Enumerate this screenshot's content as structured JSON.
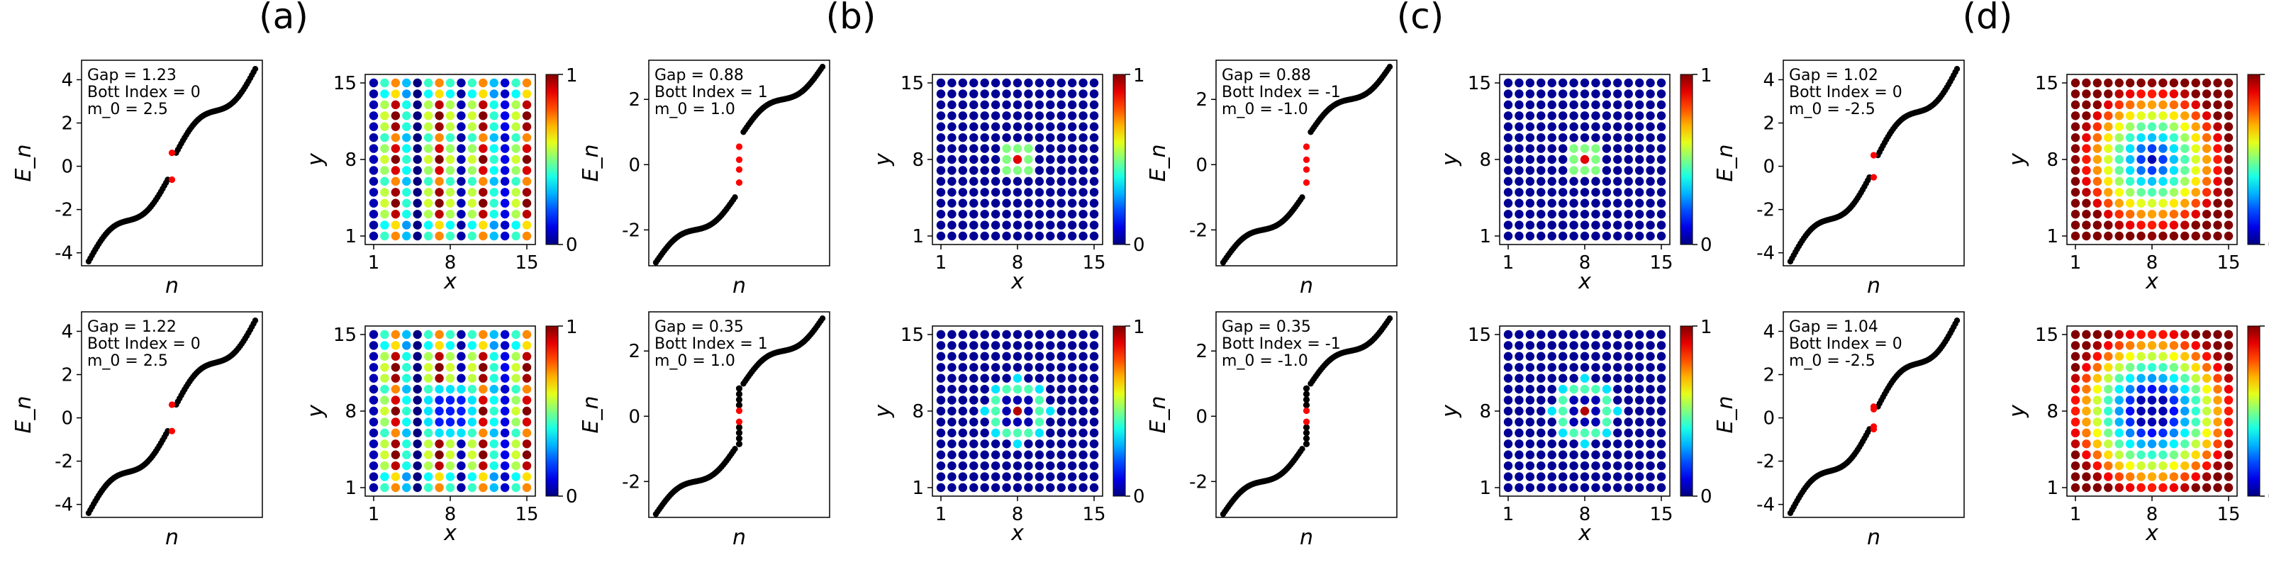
{
  "figure": {
    "panel_labels": [
      "(a)",
      "(b)",
      "(c)",
      "(d)"
    ],
    "colorbar_ticks": [
      "0",
      "1"
    ]
  },
  "chart_data": [
    {
      "type": "scatter",
      "kind": "spectrum",
      "panel": "(a)",
      "row": 1,
      "title": "",
      "xlabel": "n",
      "ylabel": "E_n",
      "ylim": [
        -4.6,
        4.9
      ],
      "yticks": [
        -4,
        -2,
        0,
        2,
        4
      ],
      "annotations": [
        "Gap = 1.23",
        "Bott Index = 0",
        "m_0 = 2.5"
      ],
      "series": [
        {
          "name": "bulk states",
          "color": "#000000",
          "E_min": -4.4,
          "E_max": 4.5,
          "gap_low": -0.62,
          "gap_high": 0.62,
          "points_per_branch": 48
        },
        {
          "name": "in-gap states",
          "color": "#ff0000",
          "values": [
            -0.62,
            0.62
          ]
        }
      ]
    },
    {
      "type": "heatmap",
      "kind": "density",
      "panel": "(a)",
      "row": 1,
      "xlabel": "x",
      "ylabel": "y",
      "xticks": [
        1,
        8,
        15
      ],
      "yticks": [
        1,
        8,
        15
      ],
      "grid_size": 15,
      "colorbar": [
        0,
        1
      ],
      "description": "striped pattern, high in columns 4-6 and 10-12, low near x=1 and x=8-9, modulated in y"
    },
    {
      "type": "scatter",
      "kind": "spectrum",
      "panel": "(b)",
      "row": 1,
      "xlabel": "n",
      "ylabel": "E_n",
      "ylim": [
        -3.1,
        3.2
      ],
      "yticks": [
        -2,
        0,
        2
      ],
      "annotations": [
        "Gap = 0.88",
        "Bott Index = 1",
        "m_0 = 1.0"
      ],
      "series": [
        {
          "name": "bulk states",
          "color": "#000000",
          "E_min": -3.0,
          "E_max": 3.0,
          "gap_low": -1.0,
          "gap_high": 1.0,
          "points_per_branch": 48
        },
        {
          "name": "in-gap states",
          "color": "#ff0000",
          "values": [
            -0.55,
            -0.15,
            0.15,
            0.55
          ]
        }
      ]
    },
    {
      "type": "heatmap",
      "kind": "density",
      "panel": "(b)",
      "row": 1,
      "xlabel": "x",
      "ylabel": "y",
      "xticks": [
        1,
        8,
        15
      ],
      "yticks": [
        1,
        8,
        15
      ],
      "grid_size": 15,
      "colorbar": [
        0,
        1
      ],
      "description": "zero everywhere except a small bright ring of radius ~1 around (8,8)"
    },
    {
      "type": "scatter",
      "kind": "spectrum",
      "panel": "(c)",
      "row": 1,
      "xlabel": "n",
      "ylabel": "E_n",
      "ylim": [
        -3.1,
        3.2
      ],
      "yticks": [
        -2,
        0,
        2
      ],
      "annotations": [
        "Gap = 0.88",
        "Bott Index = -1",
        "m_0 = -1.0"
      ],
      "series": [
        {
          "name": "bulk states",
          "color": "#000000",
          "E_min": -3.0,
          "E_max": 3.0,
          "gap_low": -1.0,
          "gap_high": 1.0,
          "points_per_branch": 48
        },
        {
          "name": "in-gap states",
          "color": "#ff0000",
          "values": [
            -0.55,
            -0.15,
            0.15,
            0.55
          ]
        }
      ]
    },
    {
      "type": "heatmap",
      "kind": "density",
      "panel": "(c)",
      "row": 1,
      "xlabel": "x",
      "ylabel": "y",
      "xticks": [
        1,
        8,
        15
      ],
      "yticks": [
        1,
        8,
        15
      ],
      "grid_size": 15,
      "colorbar": [
        0,
        1
      ],
      "description": "zero everywhere except a small bright ring of radius ~1 around (8,8)"
    },
    {
      "type": "scatter",
      "kind": "spectrum",
      "panel": "(d)",
      "row": 1,
      "xlabel": "n",
      "ylabel": "E_n",
      "ylim": [
        -4.6,
        4.9
      ],
      "yticks": [
        -4,
        -2,
        0,
        2,
        4
      ],
      "annotations": [
        "Gap = 1.02",
        "Bott Index = 0",
        "m_0 = -2.5"
      ],
      "series": [
        {
          "name": "bulk states",
          "color": "#000000",
          "E_min": -4.4,
          "E_max": 4.5,
          "gap_low": -0.51,
          "gap_high": 0.51,
          "points_per_branch": 48
        },
        {
          "name": "in-gap states",
          "color": "#ff0000",
          "values": [
            -0.51,
            0.51
          ]
        }
      ]
    },
    {
      "type": "heatmap",
      "kind": "density",
      "panel": "(d)",
      "row": 1,
      "xlabel": "x",
      "ylabel": "y",
      "xticks": [
        1,
        8,
        15
      ],
      "yticks": [
        1,
        8,
        15
      ],
      "grid_size": 15,
      "colorbar": [
        0,
        1
      ],
      "description": "high everywhere, decreasing toward the center (8,8)"
    },
    {
      "type": "scatter",
      "kind": "spectrum",
      "panel": "(a)",
      "row": 2,
      "xlabel": "n",
      "ylabel": "E_n",
      "ylim": [
        -4.6,
        4.9
      ],
      "yticks": [
        -4,
        -2,
        0,
        2,
        4
      ],
      "annotations": [
        "Gap = 1.22",
        "Bott Index = 0",
        "m_0 = 2.5"
      ],
      "series": [
        {
          "name": "bulk states",
          "color": "#000000",
          "E_min": -4.4,
          "E_max": 4.5,
          "gap_low": -0.61,
          "gap_high": 0.61,
          "points_per_branch": 48
        },
        {
          "name": "in-gap states",
          "color": "#ff0000",
          "values": [
            -0.61,
            0.61
          ]
        }
      ]
    },
    {
      "type": "heatmap",
      "kind": "density",
      "panel": "(a)",
      "row": 2,
      "xlabel": "x",
      "ylabel": "y",
      "xticks": [
        1,
        8,
        15
      ],
      "yticks": [
        1,
        8,
        15
      ],
      "grid_size": 15,
      "colorbar": [
        0,
        1
      ],
      "description": "striped pattern with a low-density ring around (8,8)"
    },
    {
      "type": "scatter",
      "kind": "spectrum",
      "panel": "(b)",
      "row": 2,
      "xlabel": "n",
      "ylabel": "E_n",
      "ylim": [
        -3.1,
        3.2
      ],
      "yticks": [
        -2,
        0,
        2
      ],
      "annotations": [
        "Gap = 0.35",
        "Bott Index = 1",
        "m_0 = 1.0"
      ],
      "series": [
        {
          "name": "bulk states",
          "color": "#000000",
          "E_min": -3.0,
          "E_max": 3.0,
          "gap_low": -1.0,
          "gap_high": 1.0,
          "points_per_branch": 48
        },
        {
          "name": "in-gap chain",
          "color": "#000000",
          "values": [
            -0.85,
            -0.68,
            -0.51,
            -0.34,
            0.34,
            0.51,
            0.68,
            0.85
          ]
        },
        {
          "name": "in-gap states",
          "color": "#ff0000",
          "values": [
            -0.17,
            0.17
          ]
        }
      ]
    },
    {
      "type": "heatmap",
      "kind": "density",
      "panel": "(b)",
      "row": 2,
      "xlabel": "x",
      "ylabel": "y",
      "xticks": [
        1,
        8,
        15
      ],
      "yticks": [
        1,
        8,
        15
      ],
      "grid_size": 15,
      "colorbar": [
        0,
        1
      ],
      "description": "zero except a larger ring of radius ~2 around (8,8) with red center"
    },
    {
      "type": "scatter",
      "kind": "spectrum",
      "panel": "(c)",
      "row": 2,
      "xlabel": "n",
      "ylabel": "E_n",
      "ylim": [
        -3.1,
        3.2
      ],
      "yticks": [
        -2,
        0,
        2
      ],
      "annotations": [
        "Gap = 0.35",
        "Bott Index = -1",
        "m_0 = -1.0"
      ],
      "series": [
        {
          "name": "bulk states",
          "color": "#000000",
          "E_min": -3.0,
          "E_max": 3.0,
          "gap_low": -1.0,
          "gap_high": 1.0,
          "points_per_branch": 48
        },
        {
          "name": "in-gap chain",
          "color": "#000000",
          "values": [
            -0.85,
            -0.68,
            -0.51,
            -0.34,
            0.34,
            0.51,
            0.68,
            0.85
          ]
        },
        {
          "name": "in-gap states",
          "color": "#ff0000",
          "values": [
            -0.17,
            0.17
          ]
        }
      ]
    },
    {
      "type": "heatmap",
      "kind": "density",
      "panel": "(c)",
      "row": 2,
      "xlabel": "x",
      "ylabel": "y",
      "xticks": [
        1,
        8,
        15
      ],
      "yticks": [
        1,
        8,
        15
      ],
      "grid_size": 15,
      "colorbar": [
        0,
        1
      ],
      "description": "zero except a larger ring of radius ~2 around (8,8) with red center"
    },
    {
      "type": "scatter",
      "kind": "spectrum",
      "panel": "(d)",
      "row": 2,
      "xlabel": "n",
      "ylabel": "E_n",
      "ylim": [
        -4.6,
        4.9
      ],
      "yticks": [
        -4,
        -2,
        0,
        2,
        4
      ],
      "annotations": [
        "Gap = 1.04",
        "Bott Index = 0",
        "m_0 = -2.5"
      ],
      "series": [
        {
          "name": "bulk states",
          "color": "#000000",
          "E_min": -4.4,
          "E_max": 4.5,
          "gap_low": -0.52,
          "gap_high": 0.52,
          "points_per_branch": 48
        },
        {
          "name": "in-gap states",
          "color": "#ff0000",
          "values": [
            -0.52,
            -0.4,
            0.4,
            0.52
          ]
        }
      ]
    },
    {
      "type": "heatmap",
      "kind": "density",
      "panel": "(d)",
      "row": 2,
      "xlabel": "x",
      "ylabel": "y",
      "xticks": [
        1,
        8,
        15
      ],
      "yticks": [
        1,
        8,
        15
      ],
      "grid_size": 15,
      "colorbar": [
        0,
        1
      ],
      "description": "high everywhere with a larger depleted region around (8,8)"
    }
  ]
}
